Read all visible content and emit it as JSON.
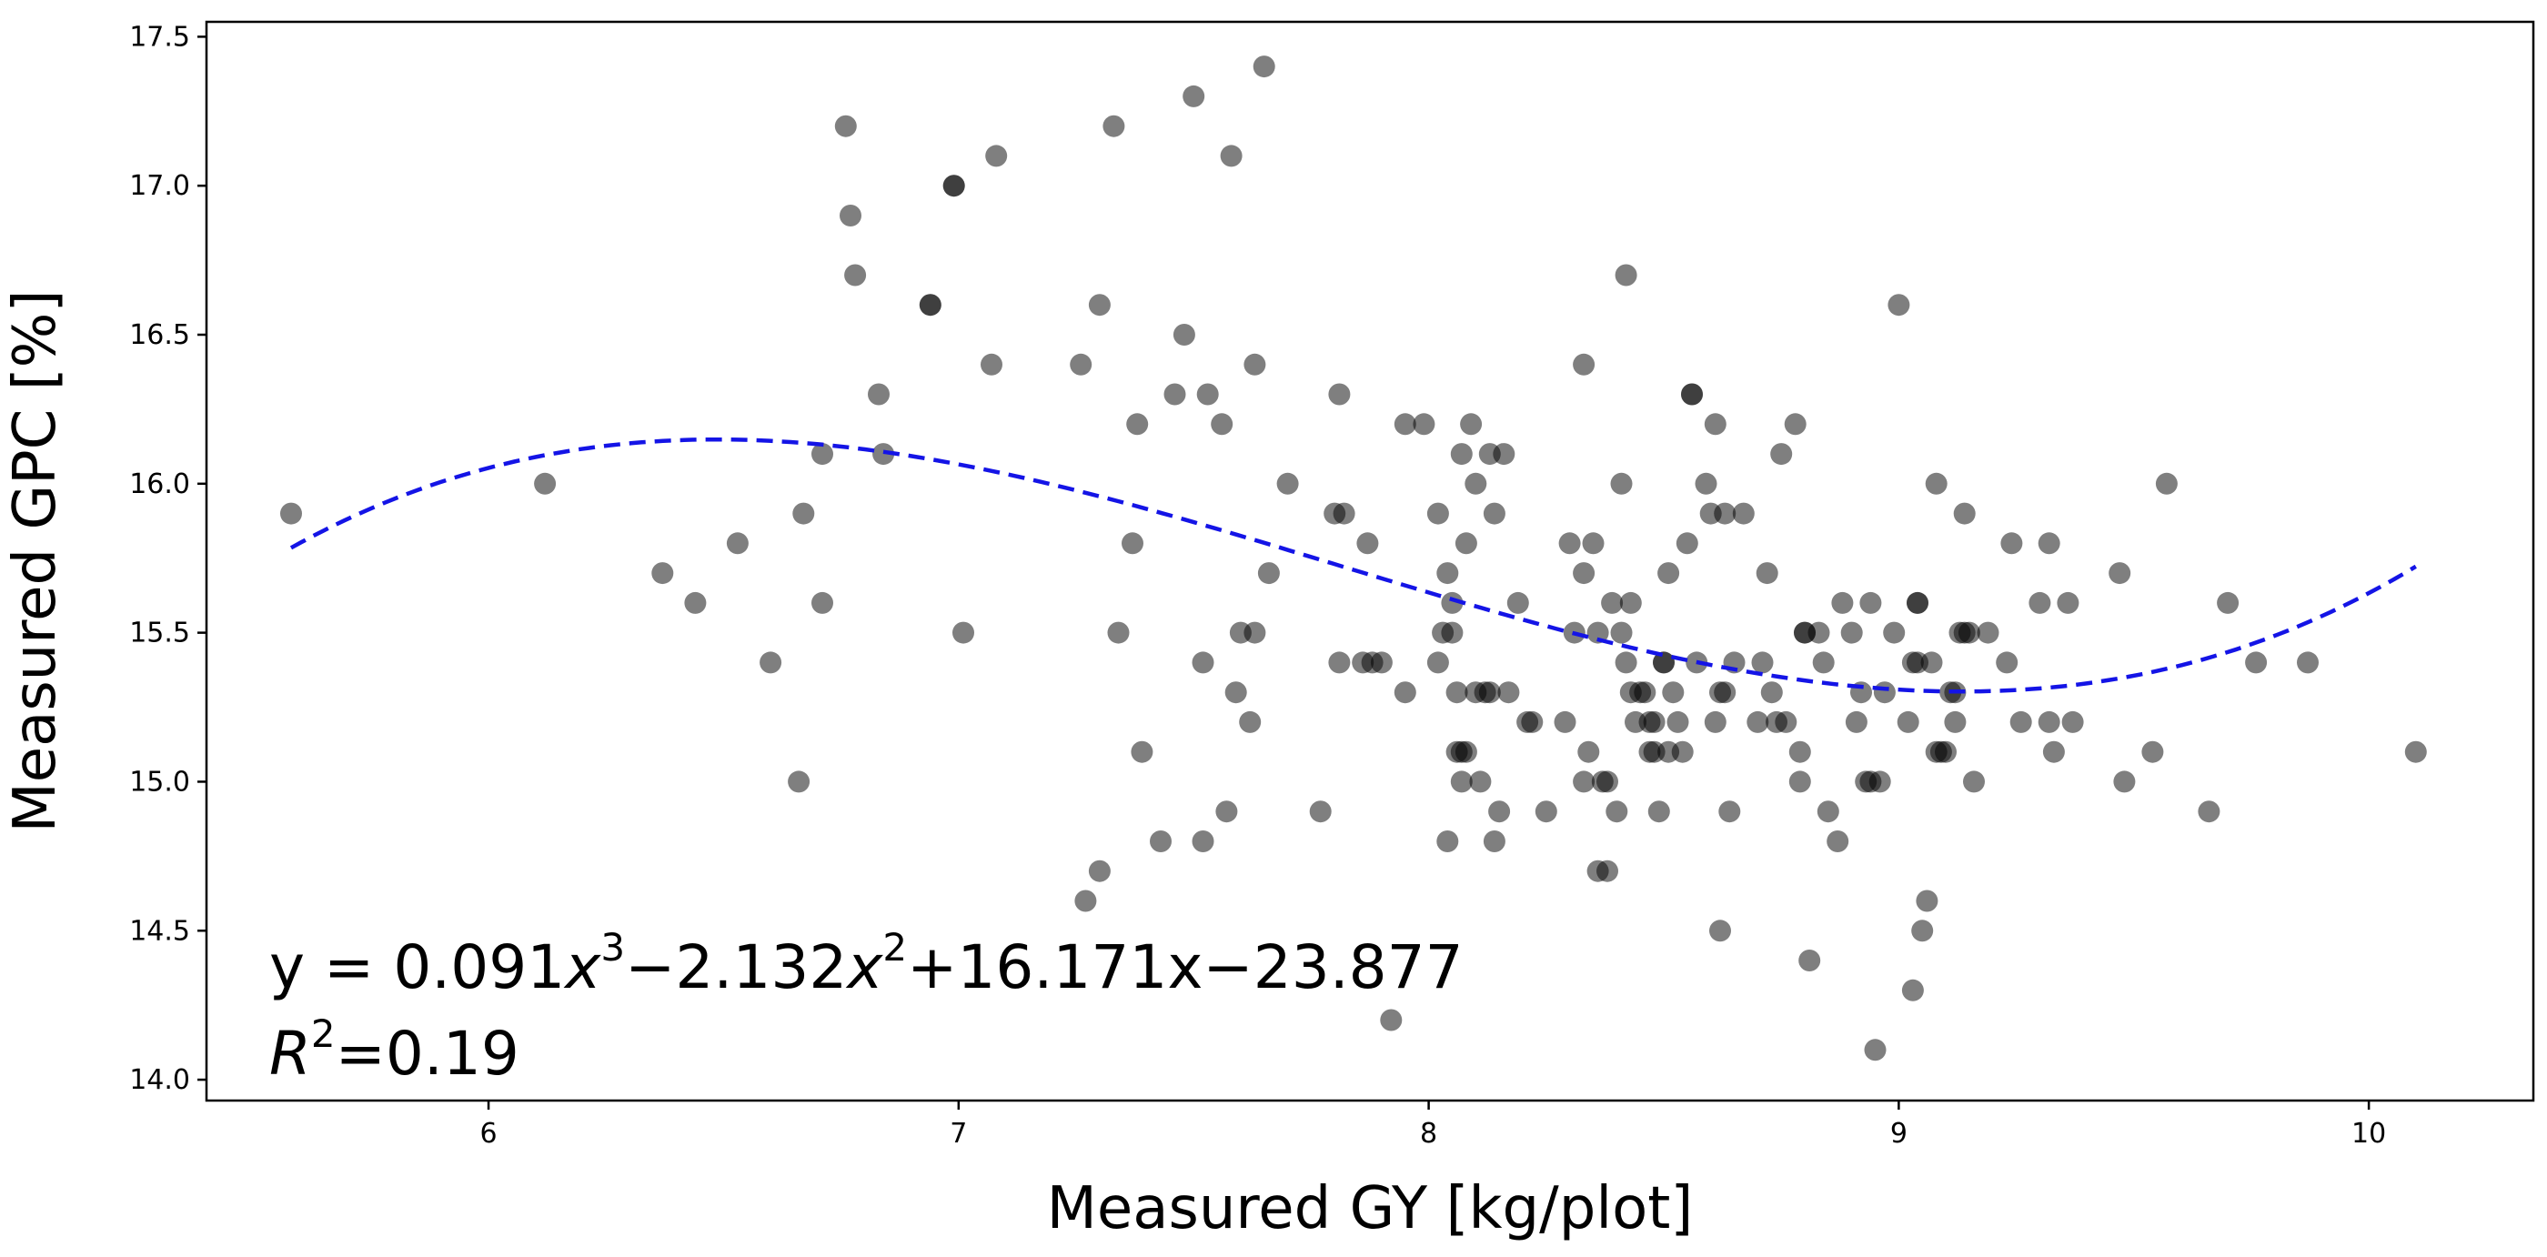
{
  "chart_data": {
    "type": "scatter",
    "title": "",
    "xlabel": "Measured GY [kg/plot]",
    "ylabel": "Measured GPC [%]",
    "xlim": [
      5.4,
      10.35
    ],
    "ylim": [
      13.93,
      17.55
    ],
    "x_ticks": [
      6,
      7,
      8,
      9,
      10
    ],
    "y_ticks": [
      14.0,
      14.5,
      15.0,
      15.5,
      16.0,
      16.5,
      17.0,
      17.5
    ],
    "x_tick_labels": [
      "6",
      "7",
      "8",
      "9",
      "10"
    ],
    "y_tick_labels": [
      "14.0",
      "14.5",
      "15.0",
      "15.5",
      "16.0",
      "16.5",
      "17.0",
      "17.5"
    ],
    "grid": false,
    "point_color": "#000000",
    "point_alpha": 0.5,
    "fit_color": "#1414e6",
    "fit": {
      "type": "cubic",
      "coefficients": [
        0.091,
        -2.132,
        16.171,
        -23.877
      ],
      "x_range": [
        5.58,
        10.1
      ],
      "equation_label": {
        "prefix": "y = 0.091",
        "var1": "x",
        "exp1": "3",
        "part2": "−2.132",
        "var2": "x",
        "exp2": "2",
        "part3": "+16.171x−23.877"
      },
      "r2_label": {
        "var": "R",
        "exp": "2",
        "value": "=0.19"
      }
    },
    "points": [
      [
        5.58,
        15.9
      ],
      [
        6.12,
        16.0
      ],
      [
        6.37,
        15.7
      ],
      [
        6.44,
        15.6
      ],
      [
        6.53,
        15.8
      ],
      [
        6.6,
        15.4
      ],
      [
        6.66,
        15.0
      ],
      [
        6.67,
        15.9
      ],
      [
        6.71,
        15.6
      ],
      [
        6.71,
        16.1
      ],
      [
        6.76,
        17.2
      ],
      [
        6.77,
        16.9
      ],
      [
        6.78,
        16.7
      ],
      [
        6.83,
        16.3
      ],
      [
        6.84,
        16.1
      ],
      [
        6.94,
        16.6
      ],
      [
        6.94,
        16.6
      ],
      [
        6.99,
        17.0
      ],
      [
        6.99,
        17.0
      ],
      [
        7.01,
        15.5
      ],
      [
        7.07,
        16.4
      ],
      [
        7.08,
        17.1
      ],
      [
        7.26,
        16.4
      ],
      [
        7.27,
        14.6
      ],
      [
        7.3,
        16.6
      ],
      [
        7.3,
        14.7
      ],
      [
        7.33,
        17.2
      ],
      [
        7.34,
        15.5
      ],
      [
        7.37,
        15.8
      ],
      [
        7.38,
        16.2
      ],
      [
        7.39,
        15.1
      ],
      [
        7.43,
        14.8
      ],
      [
        7.46,
        16.3
      ],
      [
        7.48,
        16.5
      ],
      [
        7.5,
        17.3
      ],
      [
        7.52,
        15.4
      ],
      [
        7.52,
        14.8
      ],
      [
        7.53,
        16.3
      ],
      [
        7.56,
        16.2
      ],
      [
        7.57,
        14.9
      ],
      [
        7.58,
        17.1
      ],
      [
        7.59,
        15.3
      ],
      [
        7.6,
        15.5
      ],
      [
        7.62,
        15.2
      ],
      [
        7.63,
        16.4
      ],
      [
        7.63,
        15.5
      ],
      [
        7.65,
        17.4
      ],
      [
        7.66,
        15.7
      ],
      [
        7.7,
        16.0
      ],
      [
        7.77,
        14.9
      ],
      [
        7.8,
        15.9
      ],
      [
        7.81,
        16.3
      ],
      [
        7.81,
        15.4
      ],
      [
        7.82,
        15.9
      ],
      [
        7.86,
        15.4
      ],
      [
        7.87,
        15.8
      ],
      [
        7.88,
        15.4
      ],
      [
        7.9,
        15.4
      ],
      [
        7.92,
        14.2
      ],
      [
        7.95,
        16.2
      ],
      [
        7.95,
        15.3
      ],
      [
        7.99,
        16.2
      ],
      [
        8.02,
        15.9
      ],
      [
        8.02,
        15.4
      ],
      [
        8.03,
        15.5
      ],
      [
        8.04,
        14.8
      ],
      [
        8.04,
        15.7
      ],
      [
        8.05,
        15.6
      ],
      [
        8.05,
        15.5
      ],
      [
        8.06,
        15.3
      ],
      [
        8.06,
        15.1
      ],
      [
        8.07,
        15.1
      ],
      [
        8.07,
        16.1
      ],
      [
        8.07,
        15.0
      ],
      [
        8.08,
        15.8
      ],
      [
        8.08,
        15.1
      ],
      [
        8.09,
        16.2
      ],
      [
        8.1,
        16.0
      ],
      [
        8.1,
        15.3
      ],
      [
        8.11,
        15.0
      ],
      [
        8.12,
        15.3
      ],
      [
        8.13,
        16.1
      ],
      [
        8.13,
        15.3
      ],
      [
        8.14,
        15.9
      ],
      [
        8.14,
        14.8
      ],
      [
        8.15,
        14.9
      ],
      [
        8.16,
        16.1
      ],
      [
        8.17,
        15.3
      ],
      [
        8.19,
        15.6
      ],
      [
        8.21,
        15.2
      ],
      [
        8.22,
        15.2
      ],
      [
        8.25,
        14.9
      ],
      [
        8.29,
        15.2
      ],
      [
        8.3,
        15.8
      ],
      [
        8.31,
        15.5
      ],
      [
        8.33,
        16.4
      ],
      [
        8.33,
        15.7
      ],
      [
        8.33,
        15.0
      ],
      [
        8.34,
        15.1
      ],
      [
        8.35,
        15.8
      ],
      [
        8.36,
        15.5
      ],
      [
        8.36,
        14.7
      ],
      [
        8.37,
        15.0
      ],
      [
        8.38,
        14.7
      ],
      [
        8.38,
        15.0
      ],
      [
        8.39,
        15.6
      ],
      [
        8.4,
        14.9
      ],
      [
        8.41,
        16.0
      ],
      [
        8.41,
        15.5
      ],
      [
        8.42,
        16.7
      ],
      [
        8.42,
        15.4
      ],
      [
        8.43,
        15.3
      ],
      [
        8.43,
        15.6
      ],
      [
        8.44,
        15.2
      ],
      [
        8.45,
        15.3
      ],
      [
        8.46,
        15.3
      ],
      [
        8.47,
        15.1
      ],
      [
        8.47,
        15.2
      ],
      [
        8.48,
        15.2
      ],
      [
        8.48,
        15.1
      ],
      [
        8.49,
        14.9
      ],
      [
        8.5,
        15.4
      ],
      [
        8.5,
        15.4
      ],
      [
        8.51,
        15.1
      ],
      [
        8.51,
        15.7
      ],
      [
        8.52,
        15.3
      ],
      [
        8.53,
        15.2
      ],
      [
        8.54,
        15.1
      ],
      [
        8.55,
        15.8
      ],
      [
        8.56,
        16.3
      ],
      [
        8.56,
        16.3
      ],
      [
        8.57,
        15.4
      ],
      [
        8.59,
        16.0
      ],
      [
        8.6,
        15.9
      ],
      [
        8.61,
        16.2
      ],
      [
        8.61,
        15.2
      ],
      [
        8.62,
        15.3
      ],
      [
        8.62,
        14.5
      ],
      [
        8.63,
        15.9
      ],
      [
        8.63,
        15.3
      ],
      [
        8.64,
        14.9
      ],
      [
        8.65,
        15.4
      ],
      [
        8.67,
        15.9
      ],
      [
        8.7,
        15.2
      ],
      [
        8.71,
        15.4
      ],
      [
        8.72,
        15.7
      ],
      [
        8.73,
        15.3
      ],
      [
        8.74,
        15.2
      ],
      [
        8.75,
        16.1
      ],
      [
        8.76,
        15.2
      ],
      [
        8.78,
        16.2
      ],
      [
        8.79,
        15.1
      ],
      [
        8.79,
        15.0
      ],
      [
        8.8,
        15.5
      ],
      [
        8.8,
        15.5
      ],
      [
        8.81,
        14.4
      ],
      [
        8.83,
        15.5
      ],
      [
        8.84,
        15.4
      ],
      [
        8.85,
        14.9
      ],
      [
        8.87,
        14.8
      ],
      [
        8.88,
        15.6
      ],
      [
        8.9,
        15.5
      ],
      [
        8.91,
        15.2
      ],
      [
        8.92,
        15.3
      ],
      [
        8.93,
        15.0
      ],
      [
        8.94,
        15.6
      ],
      [
        8.94,
        15.0
      ],
      [
        8.95,
        14.1
      ],
      [
        8.96,
        15.0
      ],
      [
        8.97,
        15.3
      ],
      [
        8.99,
        15.5
      ],
      [
        9.0,
        16.6
      ],
      [
        9.02,
        15.2
      ],
      [
        9.03,
        14.3
      ],
      [
        9.03,
        15.4
      ],
      [
        9.04,
        15.4
      ],
      [
        9.04,
        15.6
      ],
      [
        9.04,
        15.6
      ],
      [
        9.05,
        14.5
      ],
      [
        9.06,
        14.6
      ],
      [
        9.07,
        15.4
      ],
      [
        9.08,
        16.0
      ],
      [
        9.08,
        15.1
      ],
      [
        9.09,
        15.1
      ],
      [
        9.1,
        15.1
      ],
      [
        9.11,
        15.3
      ],
      [
        9.12,
        15.3
      ],
      [
        9.12,
        15.2
      ],
      [
        9.13,
        15.5
      ],
      [
        9.14,
        15.5
      ],
      [
        9.14,
        15.9
      ],
      [
        9.15,
        15.5
      ],
      [
        9.16,
        15.0
      ],
      [
        9.19,
        15.5
      ],
      [
        9.23,
        15.4
      ],
      [
        9.24,
        15.8
      ],
      [
        9.26,
        15.2
      ],
      [
        9.3,
        15.6
      ],
      [
        9.32,
        15.2
      ],
      [
        9.32,
        15.8
      ],
      [
        9.33,
        15.1
      ],
      [
        9.36,
        15.6
      ],
      [
        9.37,
        15.2
      ],
      [
        9.47,
        15.7
      ],
      [
        9.48,
        15.0
      ],
      [
        9.54,
        15.1
      ],
      [
        9.57,
        16.0
      ],
      [
        9.66,
        14.9
      ],
      [
        9.7,
        15.6
      ],
      [
        9.76,
        15.4
      ],
      [
        9.87,
        15.4
      ],
      [
        10.1,
        15.1
      ]
    ]
  }
}
